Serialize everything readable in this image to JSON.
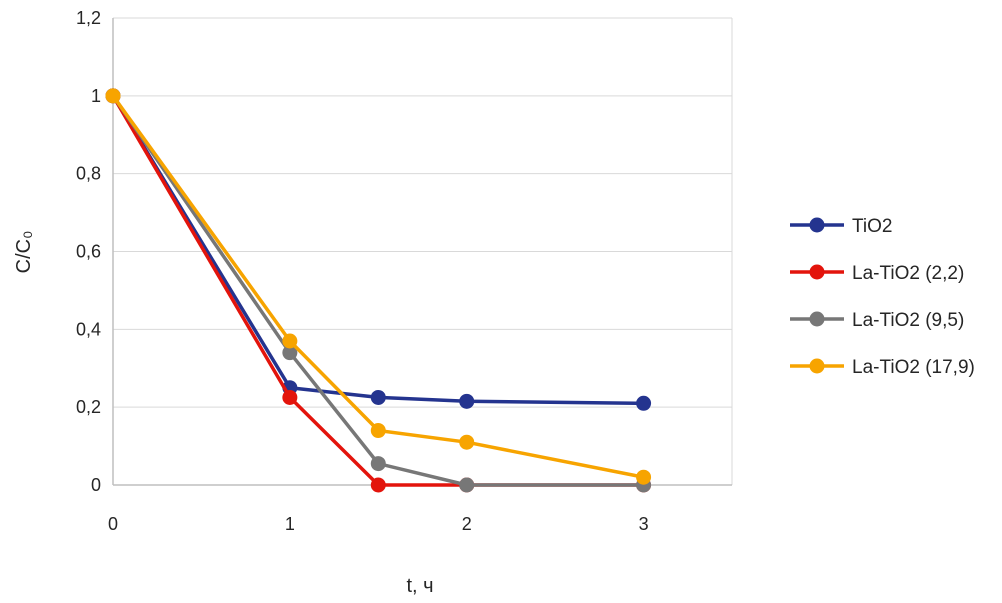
{
  "chart_data": {
    "type": "line",
    "xlabel": "t, ч",
    "ylabel": "C/C₀",
    "xlim": [
      0,
      3.5
    ],
    "ylim": [
      0,
      1.2
    ],
    "x_ticks": [
      "0",
      "1",
      "2",
      "3"
    ],
    "y_ticks": [
      "0",
      "0,2",
      "0,4",
      "0,6",
      "0,8",
      "1",
      "1,2"
    ],
    "grid": true,
    "legend_position": "right",
    "series": [
      {
        "name": "TiO2",
        "color": "#24348f",
        "x": [
          0,
          1,
          1.5,
          2,
          3
        ],
        "y": [
          1.0,
          0.25,
          0.225,
          0.215,
          0.21
        ]
      },
      {
        "name": "La-TiO2 (2,2)",
        "color": "#e3140c",
        "x": [
          0,
          1,
          1.5,
          2,
          3
        ],
        "y": [
          1.0,
          0.225,
          0.0,
          0.0,
          0.0
        ]
      },
      {
        "name": "La-TiO2 (9,5)",
        "color": "#777777",
        "x": [
          0,
          1,
          1.5,
          2,
          3
        ],
        "y": [
          1.0,
          0.34,
          0.055,
          0.0,
          0.0
        ]
      },
      {
        "name": "La-TiO2 (17,9)",
        "color": "#f7a400",
        "x": [
          0,
          1,
          1.5,
          2,
          3
        ],
        "y": [
          1.0,
          0.37,
          0.14,
          0.11,
          0.02
        ]
      }
    ]
  }
}
